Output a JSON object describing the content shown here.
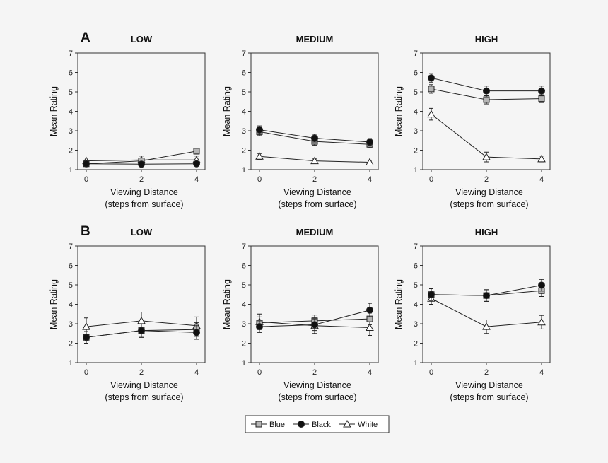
{
  "colors": {
    "blue_fill": "#b5b5b5",
    "black_fill": "#111111",
    "white_fill": "#ffffff",
    "stroke": "#222222",
    "background": "#f5f5f5"
  },
  "legend": [
    {
      "label": "Blue",
      "marker": "square"
    },
    {
      "label": "Black",
      "marker": "circle"
    },
    {
      "label": "White",
      "marker": "triangle"
    }
  ],
  "chart_data": [
    {
      "type": "line",
      "row": "A",
      "title": "LOW",
      "x": [
        0,
        2,
        4
      ],
      "xticks": [
        "0",
        "2",
        "4"
      ],
      "ylim": [
        1,
        7
      ],
      "yticks": [
        "1",
        "2",
        "3",
        "4",
        "5",
        "6",
        "7"
      ],
      "ylabel": "Mean Rating",
      "xlabel": [
        "Viewing Distance",
        "(steps from surface)"
      ],
      "series": [
        {
          "name": "Blue",
          "values": [
            1.3,
            1.45,
            1.95
          ],
          "err": [
            0.12,
            0.15,
            0.15
          ]
        },
        {
          "name": "Black",
          "values": [
            1.3,
            1.28,
            1.3
          ],
          "err": [
            0.1,
            0.1,
            0.1
          ]
        },
        {
          "name": "White",
          "values": [
            1.45,
            1.5,
            1.5
          ],
          "err": [
            0.15,
            0.2,
            0.2
          ]
        }
      ]
    },
    {
      "type": "line",
      "row": "A",
      "title": "MEDIUM",
      "x": [
        0,
        2,
        4
      ],
      "xticks": [
        "0",
        "2",
        "4"
      ],
      "ylim": [
        1,
        7
      ],
      "yticks": [
        "1",
        "2",
        "3",
        "4",
        "5",
        "6",
        "7"
      ],
      "ylabel": "Mean Rating",
      "xlabel": [
        "Viewing Distance",
        "(steps from surface)"
      ],
      "series": [
        {
          "name": "Blue",
          "values": [
            2.95,
            2.45,
            2.3
          ],
          "err": [
            0.2,
            0.2,
            0.18
          ]
        },
        {
          "name": "Black",
          "values": [
            3.05,
            2.62,
            2.42
          ],
          "err": [
            0.2,
            0.2,
            0.18
          ]
        },
        {
          "name": "White",
          "values": [
            1.68,
            1.45,
            1.38
          ],
          "err": [
            0.15,
            0.1,
            0.1
          ]
        }
      ]
    },
    {
      "type": "line",
      "row": "A",
      "title": "HIGH",
      "x": [
        0,
        2,
        4
      ],
      "xticks": [
        "0",
        "2",
        "4"
      ],
      "ylim": [
        1,
        7
      ],
      "yticks": [
        "1",
        "2",
        "3",
        "4",
        "5",
        "6",
        "7"
      ],
      "ylabel": "Mean Rating",
      "xlabel": [
        "Viewing Distance",
        "(steps from surface)"
      ],
      "series": [
        {
          "name": "Blue",
          "values": [
            5.15,
            4.6,
            4.65
          ],
          "err": [
            0.22,
            0.22,
            0.2
          ]
        },
        {
          "name": "Black",
          "values": [
            5.72,
            5.05,
            5.05
          ],
          "err": [
            0.22,
            0.25,
            0.25
          ]
        },
        {
          "name": "White",
          "values": [
            3.85,
            1.65,
            1.55
          ],
          "err": [
            0.3,
            0.25,
            0.15
          ]
        }
      ]
    },
    {
      "type": "line",
      "row": "B",
      "title": "LOW",
      "x": [
        0,
        2,
        4
      ],
      "xticks": [
        "0",
        "2",
        "4"
      ],
      "ylim": [
        1,
        7
      ],
      "yticks": [
        "1",
        "2",
        "3",
        "4",
        "5",
        "6",
        "7"
      ],
      "ylabel": "Mean Rating",
      "xlabel": [
        "Viewing Distance",
        "(steps from surface)"
      ],
      "series": [
        {
          "name": "Blue",
          "values": [
            2.3,
            2.65,
            2.7
          ],
          "err": [
            0.3,
            0.35,
            0.35
          ]
        },
        {
          "name": "Black",
          "values": [
            2.3,
            2.65,
            2.55
          ],
          "err": [
            0.3,
            0.35,
            0.35
          ]
        },
        {
          "name": "White",
          "values": [
            2.85,
            3.15,
            2.9
          ],
          "err": [
            0.45,
            0.45,
            0.45
          ]
        }
      ]
    },
    {
      "type": "line",
      "row": "B",
      "title": "MEDIUM",
      "x": [
        0,
        2,
        4
      ],
      "xticks": [
        "0",
        "2",
        "4"
      ],
      "ylim": [
        1,
        7
      ],
      "yticks": [
        "1",
        "2",
        "3",
        "4",
        "5",
        "6",
        "7"
      ],
      "ylabel": "Mean Rating",
      "xlabel": [
        "Viewing Distance",
        "(steps from surface)"
      ],
      "series": [
        {
          "name": "Blue",
          "values": [
            3.05,
            3.15,
            3.25
          ],
          "err": [
            0.3,
            0.3,
            0.3
          ]
        },
        {
          "name": "Black",
          "values": [
            2.85,
            2.95,
            3.7
          ],
          "err": [
            0.3,
            0.3,
            0.35
          ]
        },
        {
          "name": "White",
          "values": [
            3.1,
            2.9,
            2.8
          ],
          "err": [
            0.4,
            0.4,
            0.4
          ]
        }
      ]
    },
    {
      "type": "line",
      "row": "B",
      "title": "HIGH",
      "x": [
        0,
        2,
        4
      ],
      "xticks": [
        "0",
        "2",
        "4"
      ],
      "ylim": [
        1,
        7
      ],
      "yticks": [
        "1",
        "2",
        "3",
        "4",
        "5",
        "6",
        "7"
      ],
      "ylabel": "Mean Rating",
      "xlabel": [
        "Viewing Distance",
        "(steps from surface)"
      ],
      "series": [
        {
          "name": "Blue",
          "values": [
            4.5,
            4.45,
            4.7
          ],
          "err": [
            0.3,
            0.3,
            0.3
          ]
        },
        {
          "name": "Black",
          "values": [
            4.5,
            4.45,
            4.98
          ],
          "err": [
            0.3,
            0.3,
            0.3
          ]
        },
        {
          "name": "White",
          "values": [
            4.3,
            2.85,
            3.08
          ],
          "err": [
            0.3,
            0.35,
            0.35
          ]
        }
      ]
    }
  ]
}
